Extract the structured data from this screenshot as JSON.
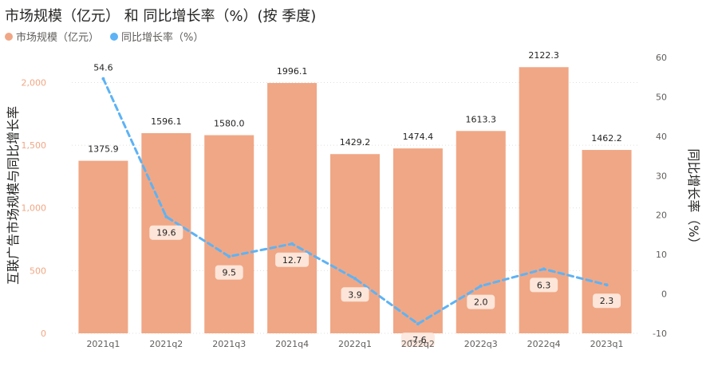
{
  "title": "市场规模（亿元） 和 同比增长率（%）(按 季度)",
  "legend": [
    {
      "label": "市场规模（亿元）",
      "color": "#F0A785"
    },
    {
      "label": "同比增长率（%）",
      "color": "#5DB3F5"
    }
  ],
  "chart_data": {
    "type": "bar",
    "categories": [
      "2021q1",
      "2021q2",
      "2021q3",
      "2021q4",
      "2022q1",
      "2022q2",
      "2022q3",
      "2022q4",
      "2023q1"
    ],
    "series": [
      {
        "name": "市场规模（亿元）",
        "type": "bar",
        "axis": "left",
        "color": "#F0A785",
        "values": [
          1375.9,
          1596.1,
          1580.0,
          1996.1,
          1429.2,
          1474.4,
          1613.3,
          2122.3,
          1462.2
        ]
      },
      {
        "name": "同比增长率（%）",
        "type": "line",
        "axis": "right",
        "style": "dashed",
        "color": "#5DB3F5",
        "values": [
          54.6,
          19.6,
          9.5,
          12.7,
          3.9,
          -7.6,
          2.0,
          6.3,
          2.3
        ]
      }
    ],
    "ylabel": "互联广告市场规模与同比增长率",
    "y2label": "同比增长率（%）",
    "ylim": [
      0,
      2200
    ],
    "y2lim": [
      -10,
      60
    ],
    "yticks": [
      "0",
      "500",
      "1,000",
      "1,500",
      "2,000"
    ],
    "y2ticks": [
      "-10",
      "0",
      "10",
      "20",
      "30",
      "40",
      "50",
      "60"
    ],
    "grid": true,
    "legend_position": "top-left"
  }
}
